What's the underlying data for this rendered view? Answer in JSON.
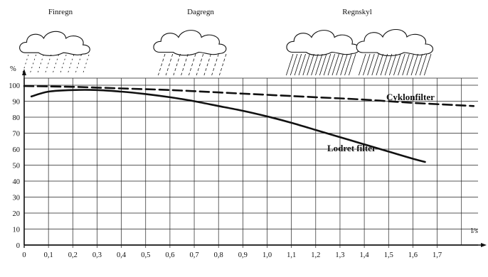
{
  "chart_data": {
    "type": "line",
    "x_unit": "l/s",
    "y_unit": "%",
    "xlim": [
      0,
      1.85
    ],
    "ylim": [
      0,
      100
    ],
    "x_ticks": [
      "0",
      "0,1",
      "0,2",
      "0,3",
      "0,4",
      "0,5",
      "0,6",
      "0,7",
      "0,8",
      "0,9",
      "1,0",
      "1,1",
      "1,2",
      "1,3",
      "1,4",
      "1,5",
      "1,6",
      "1,7"
    ],
    "y_ticks": [
      "0",
      "10",
      "20",
      "30",
      "40",
      "50",
      "60",
      "70",
      "80",
      "90",
      "100"
    ],
    "grid": true,
    "rain_types": [
      {
        "label": "Finregn",
        "x": 0.2
      },
      {
        "label": "Dagregn",
        "x": 0.6
      },
      {
        "label": "Regnskyl",
        "x": 1.25
      }
    ],
    "series": [
      {
        "name": "Cyklonfilter",
        "style": "dashed",
        "x": [
          0.0,
          0.2,
          0.4,
          0.6,
          0.8,
          1.0,
          1.2,
          1.4,
          1.6,
          1.85
        ],
        "y": [
          99.5,
          99,
          98,
          97,
          95.5,
          94,
          92.5,
          91,
          89,
          87
        ]
      },
      {
        "name": "Lodret filter",
        "style": "solid",
        "x": [
          0.03,
          0.1,
          0.2,
          0.3,
          0.4,
          0.5,
          0.6,
          0.7,
          0.8,
          0.9,
          1.0,
          1.1,
          1.2,
          1.3,
          1.4,
          1.5,
          1.6,
          1.65
        ],
        "y": [
          93,
          96,
          97,
          97,
          96,
          94.5,
          92.5,
          90,
          87,
          84,
          80.5,
          76.5,
          72,
          67.5,
          63,
          58.5,
          54,
          52
        ]
      }
    ]
  }
}
